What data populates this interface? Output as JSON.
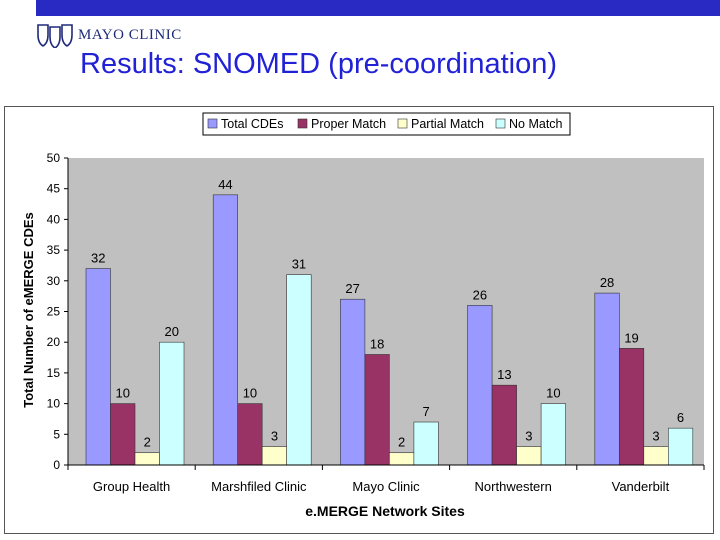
{
  "header": {
    "logo_text": "MAYO CLINIC",
    "logo_icon": "mayo-shields-icon",
    "bar_color": "#2929c4"
  },
  "slide": {
    "title": "Results: SNOMED (pre-coordination)"
  },
  "chart_data": {
    "type": "bar",
    "title": "",
    "xlabel": "e.MERGE Network Sites",
    "ylabel": "Total Number of eMERGE CDEs",
    "ylim": [
      0,
      50
    ],
    "yticks": [
      "0",
      "5",
      "10",
      "15",
      "20",
      "25",
      "30",
      "35",
      "40",
      "45",
      "50"
    ],
    "categories": [
      "Group Health",
      "Marshfiled Clinic",
      "Mayo Clinic",
      "Northwestern",
      "Vanderbilt"
    ],
    "series": [
      {
        "name": "Total CDEs",
        "color": "#9999ff",
        "values": [
          32,
          44,
          27,
          26,
          28
        ]
      },
      {
        "name": "Proper Match",
        "color": "#993366",
        "values": [
          10,
          10,
          18,
          13,
          19
        ]
      },
      {
        "name": "Partial Match",
        "color": "#ffffcc",
        "values": [
          2,
          3,
          2,
          3,
          3
        ]
      },
      {
        "name": "No Match",
        "color": "#ccffff",
        "values": [
          20,
          31,
          7,
          10,
          6
        ]
      }
    ],
    "grid": false,
    "plot_background": "#c0c0c0",
    "legend_position": "top"
  }
}
